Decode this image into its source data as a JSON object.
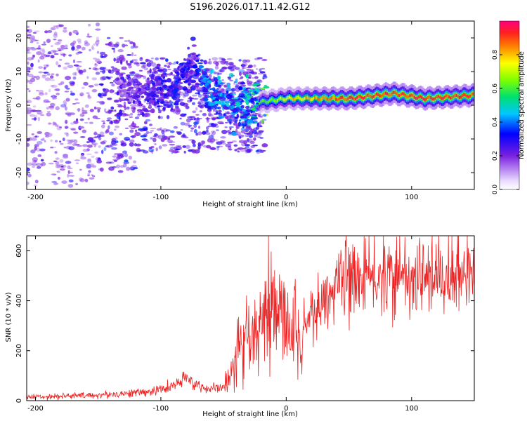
{
  "chart_data": [
    {
      "type": "heatmap",
      "title": "S196.2026.017.11.42.G12",
      "xlabel": "Height of straight line (km)",
      "ylabel": "Frequency (Hz)",
      "xlim": [
        -207,
        150
      ],
      "ylim": [
        -25,
        25
      ],
      "x_ticks": [
        -200,
        -100,
        0,
        100
      ],
      "x_tick_labels": [
        "-200",
        "-100",
        "0",
        "100"
      ],
      "y_ticks": [
        -20,
        -10,
        0,
        10,
        20
      ],
      "y_tick_labels": [
        "-20",
        "-10",
        "0",
        "10",
        "20"
      ],
      "colorbar": {
        "label": "Normalized spectral amplitude",
        "range": [
          0,
          1
        ],
        "ticks": [
          0.0,
          0.2,
          0.4,
          0.6,
          0.8
        ],
        "tick_labels": [
          "0.0",
          "0.2",
          "0.4",
          "0.6",
          "0.8"
        ]
      },
      "ridge": {
        "description_points": [
          {
            "x": -120,
            "freq": 5,
            "amp": 0.25
          },
          {
            "x": -90,
            "freq": 3,
            "amp": 0.35
          },
          {
            "x": -75,
            "freq": 12,
            "amp": 0.3
          },
          {
            "x": -60,
            "freq": 3,
            "amp": 0.45
          },
          {
            "x": -40,
            "freq": 0,
            "amp": 0.45
          },
          {
            "x": -20,
            "freq": 1,
            "amp": 0.6
          },
          {
            "x": 0,
            "freq": 2,
            "amp": 0.75
          },
          {
            "x": 50,
            "freq": 2,
            "amp": 0.95
          },
          {
            "x": 85,
            "freq": 3.5,
            "amp": 0.95
          },
          {
            "x": 110,
            "freq": 2,
            "amp": 0.95
          },
          {
            "x": 150,
            "freq": 3,
            "amp": 0.95
          }
        ]
      }
    },
    {
      "type": "line",
      "xlabel": "Height of straight line (km)",
      "ylabel": "SNR (10 * v/v)",
      "xlim": [
        -207,
        150
      ],
      "ylim": [
        0,
        660
      ],
      "x_ticks": [
        -200,
        -100,
        0,
        100
      ],
      "x_tick_labels": [
        "-200",
        "-100",
        "0",
        "100"
      ],
      "y_ticks": [
        0,
        200,
        400,
        600
      ],
      "y_tick_labels": [
        "0",
        "200",
        "400",
        "600"
      ],
      "color": "#ee2222",
      "series": [
        {
          "name": "SNR",
          "x": [
            -207,
            -180,
            -150,
            -130,
            -110,
            -95,
            -85,
            -80,
            -70,
            -60,
            -50,
            -45,
            -40,
            -35,
            -30,
            -25,
            -20,
            -15,
            -10,
            -5,
            0,
            5,
            10,
            12,
            15,
            20,
            30,
            40,
            45,
            60,
            80,
            100,
            120,
            150
          ],
          "values": [
            15,
            18,
            22,
            28,
            35,
            50,
            70,
            90,
            60,
            45,
            55,
            100,
            160,
            190,
            230,
            240,
            260,
            320,
            320,
            330,
            320,
            280,
            230,
            180,
            300,
            340,
            400,
            450,
            480,
            490,
            490,
            490,
            490,
            490
          ]
        }
      ]
    }
  ]
}
